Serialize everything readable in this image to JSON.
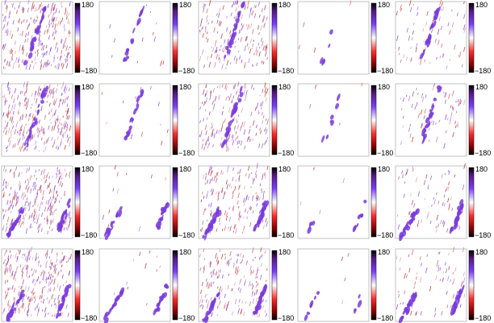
{
  "panels": [
    [
      {
        "max": "180",
        "min": "−180"
      },
      {
        "max": "180",
        "min": "−180"
      },
      {
        "max": "180",
        "min": "−180"
      },
      {
        "max": "180",
        "min": "−180"
      },
      {
        "max": "180",
        "min": "−180"
      }
    ],
    [
      {
        "max": "180",
        "min": "−180"
      },
      {
        "max": "180",
        "min": "−180"
      },
      {
        "max": "180",
        "min": "−180"
      },
      {
        "max": "180",
        "min": "−180"
      },
      {
        "max": "180",
        "min": "−180"
      }
    ],
    [
      {
        "max": "180",
        "min": "−180"
      },
      {
        "max": "180",
        "min": "−180"
      },
      {
        "max": "180",
        "min": "−180"
      },
      {
        "max": "180",
        "min": "−180"
      },
      {
        "max": "180",
        "min": "−180"
      }
    ],
    [
      {
        "max": "180",
        "min": "−180"
      },
      {
        "max": "180",
        "min": "−180"
      },
      {
        "max": "180",
        "min": "−180"
      },
      {
        "max": "180",
        "min": "−180"
      },
      {
        "max": "180",
        "min": "−180"
      }
    ]
  ]
}
